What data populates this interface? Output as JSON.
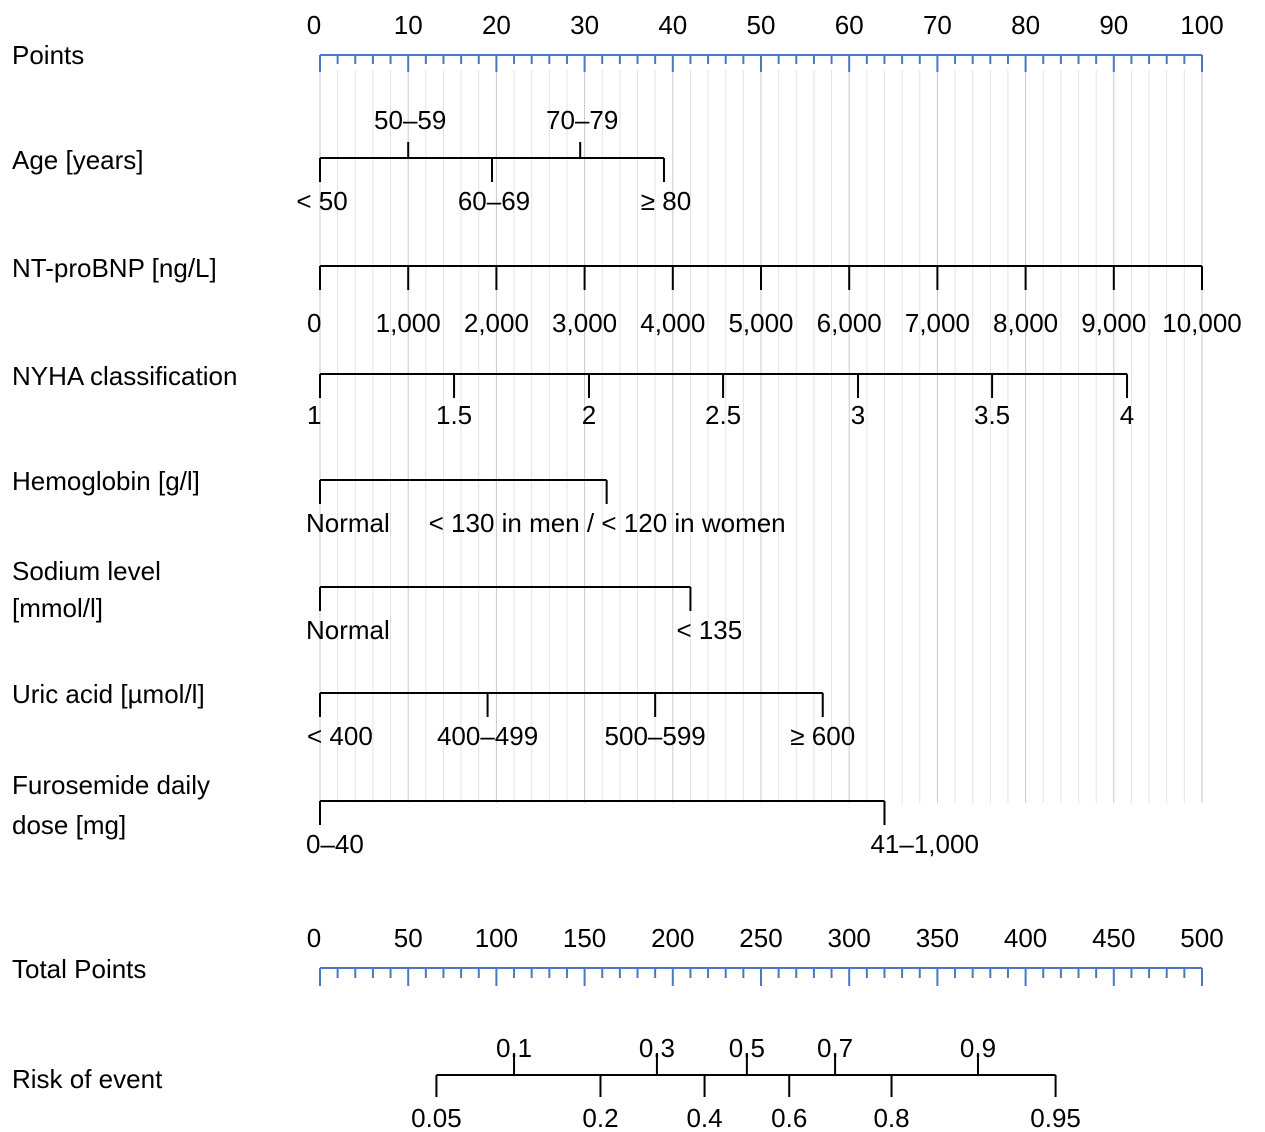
{
  "colors": {
    "accent": "#4a78c2",
    "grid": "#d6d6d6",
    "ink": "#000000"
  },
  "chart_data": {
    "type": "nomogram",
    "points_scale": {
      "label": "Points",
      "range": [
        0,
        100
      ],
      "major_labels": [
        "0",
        "10",
        "20",
        "30",
        "40",
        "50",
        "60",
        "70",
        "80",
        "90",
        "100"
      ]
    },
    "predictors": [
      {
        "name": "Age [years]",
        "levels": [
          {
            "label": "< 50",
            "points": 0
          },
          {
            "label": "50–59",
            "points": 10
          },
          {
            "label": "60–69",
            "points": 19.5
          },
          {
            "label": "70–79",
            "points": 29.5
          },
          {
            "label": "≥ 80",
            "points": 39
          }
        ]
      },
      {
        "name": "NT-proBNP [ng/L]",
        "levels": [
          {
            "label": "0",
            "points": 0
          },
          {
            "label": "1,000",
            "points": 10
          },
          {
            "label": "2,000",
            "points": 20
          },
          {
            "label": "3,000",
            "points": 30
          },
          {
            "label": "4,000",
            "points": 40
          },
          {
            "label": "5,000",
            "points": 50
          },
          {
            "label": "6,000",
            "points": 60
          },
          {
            "label": "7,000",
            "points": 70
          },
          {
            "label": "8,000",
            "points": 80
          },
          {
            "label": "9,000",
            "points": 90
          },
          {
            "label": "10,000",
            "points": 100
          }
        ]
      },
      {
        "name": "NYHA classification",
        "levels": [
          {
            "label": "1",
            "points": 0
          },
          {
            "label": "1.5",
            "points": 15.2
          },
          {
            "label": "2",
            "points": 30.5
          },
          {
            "label": "2.5",
            "points": 45.7
          },
          {
            "label": "3",
            "points": 61
          },
          {
            "label": "3.5",
            "points": 76.2
          },
          {
            "label": "4",
            "points": 91.5
          }
        ]
      },
      {
        "name": "Hemoglobin [g/l]",
        "levels": [
          {
            "label": "Normal",
            "points": 0
          },
          {
            "label": "< 130 in men / < 120 in women",
            "points": 32.5
          }
        ]
      },
      {
        "name": "Sodium level [mmol/l]",
        "levels": [
          {
            "label": "Normal",
            "points": 0
          },
          {
            "label": "< 135",
            "points": 42
          }
        ]
      },
      {
        "name": "Uric acid [µmol/l]",
        "levels": [
          {
            "label": "< 400",
            "points": 0
          },
          {
            "label": "400–499",
            "points": 19
          },
          {
            "label": "500–599",
            "points": 38
          },
          {
            "label": "≥ 600",
            "points": 57
          }
        ]
      },
      {
        "name": "Furosemide daily dose [mg]",
        "levels": [
          {
            "label": "0–40",
            "points": 0
          },
          {
            "label": "41–1,000",
            "points": 64
          }
        ]
      }
    ],
    "total_points_scale": {
      "label": "Total Points",
      "range": [
        0,
        500
      ],
      "major_labels": [
        "0",
        "50",
        "100",
        "150",
        "200",
        "250",
        "300",
        "350",
        "400",
        "450",
        "500"
      ]
    },
    "risk": {
      "label": "Risk of event",
      "ticks": [
        {
          "label": "0.05",
          "total_points": 66
        },
        {
          "label": "0.1",
          "total_points": 110
        },
        {
          "label": "0.2",
          "total_points": 159
        },
        {
          "label": "0.3",
          "total_points": 191
        },
        {
          "label": "0.4",
          "total_points": 218
        },
        {
          "label": "0.5",
          "total_points": 242
        },
        {
          "label": "0.6",
          "total_points": 266
        },
        {
          "label": "0.7",
          "total_points": 292
        },
        {
          "label": "0.8",
          "total_points": 324
        },
        {
          "label": "0.9",
          "total_points": 373
        },
        {
          "label": "0.95",
          "total_points": 417
        }
      ]
    }
  }
}
